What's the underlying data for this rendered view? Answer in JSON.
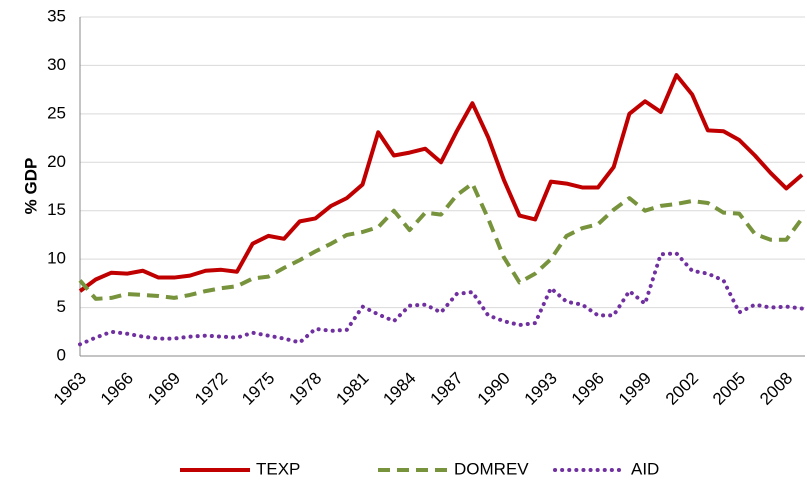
{
  "chart_data": {
    "type": "line",
    "y_label": "% GDP",
    "categories": [
      "1963",
      null,
      null,
      "1966",
      null,
      null,
      "1969",
      null,
      null,
      "1972",
      null,
      null,
      "1975",
      null,
      null,
      "1978",
      null,
      null,
      "1981",
      null,
      null,
      "1984",
      null,
      null,
      "1987",
      null,
      null,
      "1990",
      null,
      null,
      "1993",
      null,
      null,
      "1996",
      null,
      null,
      "1999",
      null,
      null,
      "2002",
      null,
      null,
      "2005",
      null,
      null,
      "2008",
      null
    ],
    "series": [
      {
        "name": "TEXP",
        "color": "#c00000",
        "dash": "solid",
        "values": [
          6.7,
          7.9,
          8.6,
          8.5,
          8.8,
          8.1,
          8.1,
          8.3,
          8.8,
          8.9,
          8.7,
          11.6,
          12.4,
          12.1,
          13.9,
          14.2,
          15.5,
          16.3,
          17.7,
          23.1,
          20.7,
          21.0,
          21.4,
          20.0,
          23.2,
          26.1,
          22.6,
          18.2,
          14.5,
          14.1,
          18.0,
          17.8,
          17.4,
          17.4,
          19.5,
          25.0,
          26.3,
          25.2,
          29.0,
          27.0,
          23.3,
          23.2,
          22.3,
          20.7,
          18.9,
          17.3,
          18.7
        ]
      },
      {
        "name": "DOMREV",
        "color": "#77933c",
        "dash": "dash",
        "values": [
          7.8,
          5.9,
          6.0,
          6.4,
          6.3,
          6.2,
          6.0,
          6.3,
          6.7,
          7.0,
          7.2,
          8.0,
          8.2,
          9.1,
          9.9,
          10.8,
          11.6,
          12.5,
          12.8,
          13.3,
          15.0,
          13.0,
          14.8,
          14.6,
          16.6,
          17.8,
          14.2,
          10.2,
          7.6,
          8.5,
          10.0,
          12.4,
          13.2,
          13.6,
          15.1,
          16.3,
          15.0,
          15.5,
          15.7,
          16.0,
          15.8,
          14.8,
          14.7,
          12.6,
          12.0,
          12.0,
          14.2
        ]
      },
      {
        "name": "AID",
        "color": "#7030a0",
        "dash": "dot",
        "values": [
          1.2,
          1.9,
          2.5,
          2.3,
          2.0,
          1.8,
          1.8,
          2.0,
          2.1,
          2.0,
          1.9,
          2.4,
          2.1,
          1.8,
          1.4,
          2.8,
          2.6,
          2.7,
          5.1,
          4.3,
          3.6,
          5.2,
          5.3,
          4.5,
          6.4,
          6.6,
          4.2,
          3.6,
          3.2,
          3.4,
          7.0,
          5.6,
          5.3,
          4.2,
          4.2,
          6.7,
          5.4,
          10.5,
          10.6,
          8.8,
          8.5,
          7.8,
          4.5,
          5.3,
          5.0,
          5.1,
          4.9
        ]
      }
    ],
    "ylim": [
      0,
      35
    ],
    "yticks": [
      0,
      5,
      10,
      15,
      20,
      25,
      30,
      35
    ],
    "grid": true,
    "legend": "bottom"
  }
}
